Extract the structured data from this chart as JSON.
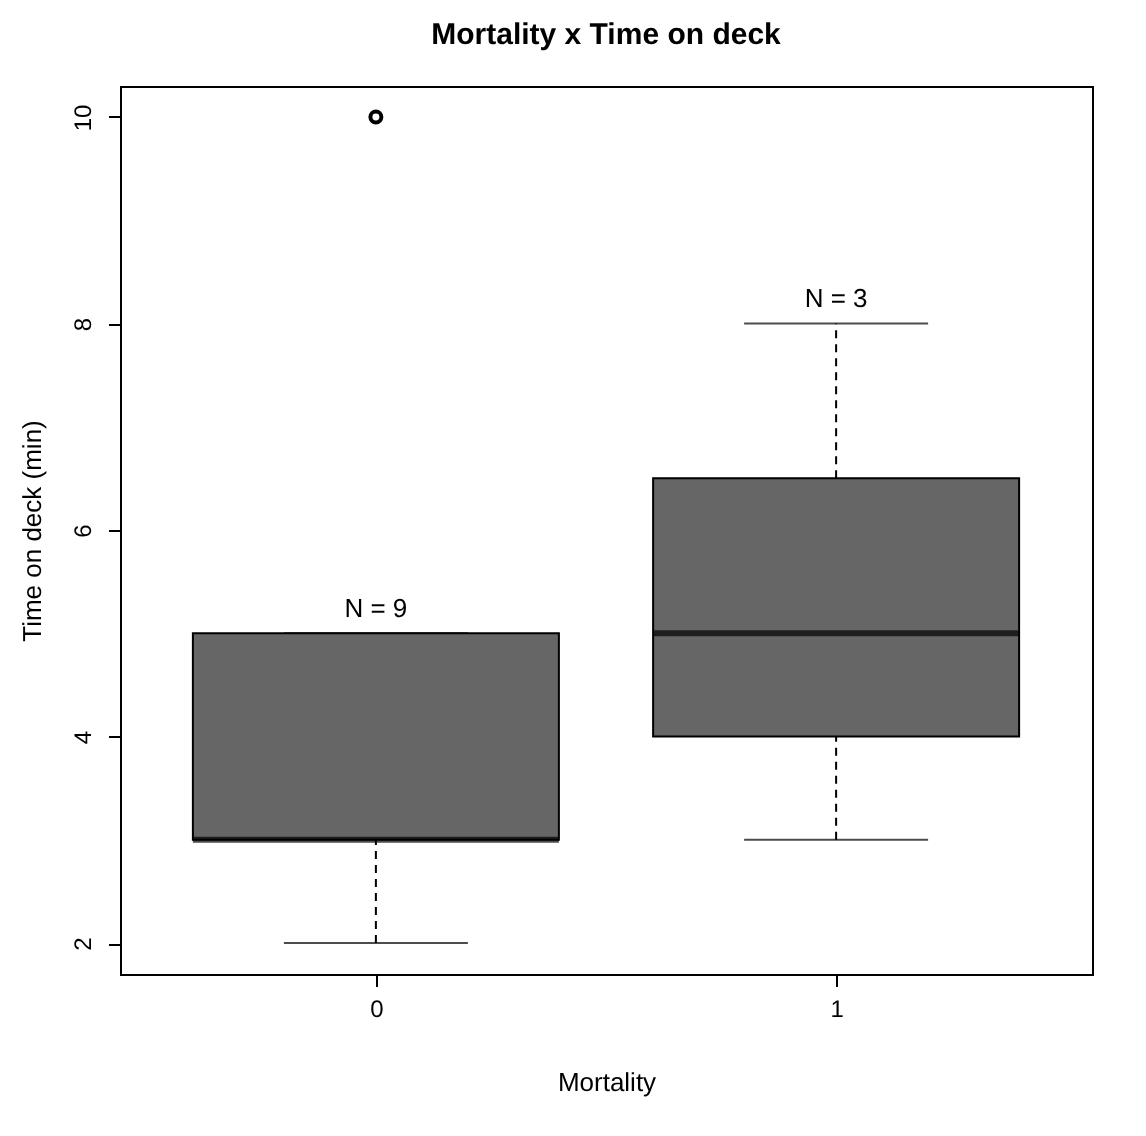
{
  "chart_data": {
    "type": "box",
    "title": "Mortality x Time on deck",
    "xlabel": "Mortality",
    "ylabel": "Time on deck (min)",
    "categories": [
      "0",
      "1"
    ],
    "color": "#666666",
    "boxes": [
      {
        "low": 2,
        "q1": 3,
        "median": 3,
        "q3": 5,
        "high": 5,
        "outliers": [
          10
        ]
      },
      {
        "low": 3,
        "q1": 4,
        "median": 5,
        "q3": 6.5,
        "high": 8
      }
    ],
    "ylim": [
      1.7,
      10.3
    ],
    "yticks": [
      2,
      4,
      6,
      8,
      10
    ],
    "annotations": [
      "N = 9",
      "N = 3"
    ]
  }
}
